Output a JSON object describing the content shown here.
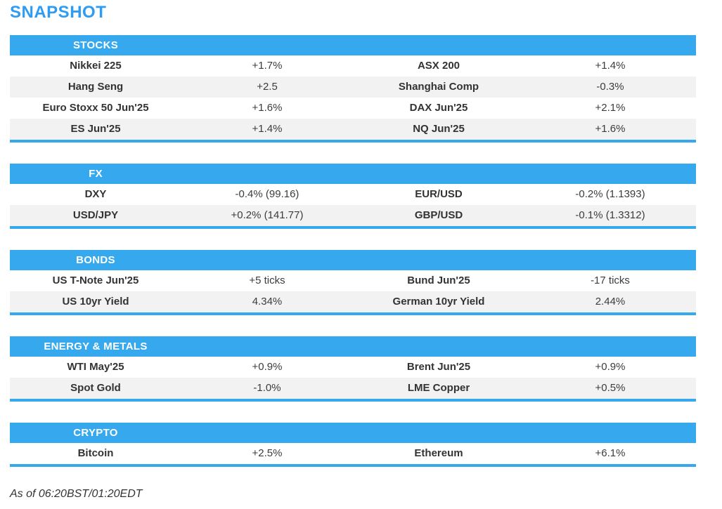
{
  "title": "SNAPSHOT",
  "footer": "As of 06:20BST/01:20EDT",
  "colors": {
    "accent_blue": "#36a9ee",
    "title_blue": "#2e9cf3",
    "row_alt_gray": "#f2f2f2",
    "header_text": "#ffffff",
    "body_text": "#333333"
  },
  "sections": [
    {
      "label": "STOCKS",
      "rows": [
        {
          "name1": "Nikkei 225",
          "value1": "+1.7%",
          "name2": "ASX 200",
          "value2": "+1.4%"
        },
        {
          "name1": "Hang Seng",
          "value1": "+2.5",
          "name2": "Shanghai Comp",
          "value2": "-0.3%"
        },
        {
          "name1": "Euro Stoxx 50 Jun'25",
          "value1": "+1.6%",
          "name2": "DAX Jun'25",
          "value2": "+2.1%"
        },
        {
          "name1": "ES Jun'25",
          "value1": "+1.4%",
          "name2": "NQ Jun'25",
          "value2": "+1.6%"
        }
      ]
    },
    {
      "label": "FX",
      "rows": [
        {
          "name1": "DXY",
          "value1": "-0.4% (99.16)",
          "name2": "EUR/USD",
          "value2": "-0.2% (1.1393)"
        },
        {
          "name1": "USD/JPY",
          "value1": "+0.2% (141.77)",
          "name2": "GBP/USD",
          "value2": "-0.1% (1.3312)"
        }
      ]
    },
    {
      "label": "BONDS",
      "rows": [
        {
          "name1": "US T-Note Jun'25",
          "value1": "+5 ticks",
          "name2": "Bund Jun'25",
          "value2": "-17 ticks"
        },
        {
          "name1": "US 10yr Yield",
          "value1": "4.34%",
          "name2": "German 10yr Yield",
          "value2": "2.44%"
        }
      ]
    },
    {
      "label": "ENERGY & METALS",
      "rows": [
        {
          "name1": "WTI May'25",
          "value1": "+0.9%",
          "name2": "Brent Jun'25",
          "value2": "+0.9%"
        },
        {
          "name1": "Spot Gold",
          "value1": "-1.0%",
          "name2": "LME Copper",
          "value2": "+0.5%"
        }
      ]
    },
    {
      "label": "CRYPTO",
      "rows": [
        {
          "name1": "Bitcoin",
          "value1": "+2.5%",
          "name2": "Ethereum",
          "value2": "+6.1%"
        }
      ]
    }
  ]
}
